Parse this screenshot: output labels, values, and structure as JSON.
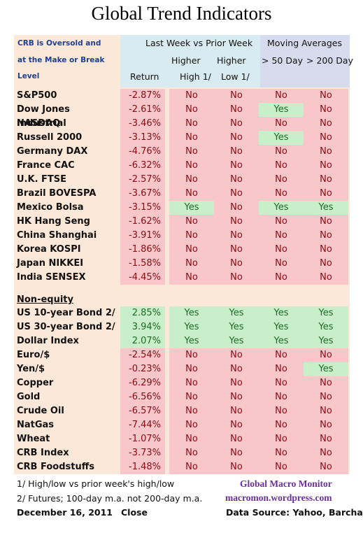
{
  "title": "Global Trend Indicators",
  "header": {
    "crb_note": [
      "CRB is Oversold and",
      "at the Make or Break",
      "Level"
    ],
    "group1": "Last Week vs Prior Week",
    "group2": "Moving Averages",
    "col_return": "Return",
    "col_higher_high": [
      "Higher",
      "High 1/"
    ],
    "col_higher_low": [
      "Higher",
      "Low  1/"
    ],
    "col_50": "> 50 Day",
    "col_200": "> 200 Day"
  },
  "equities": [
    {
      "name": "S&P500",
      "ret": "-2.87%",
      "hh": "No",
      "hl": "No",
      "d50": "No",
      "d200": "No"
    },
    {
      "name": "Dow Jones Industrial",
      "ret": "-2.61%",
      "hh": "No",
      "hl": "No",
      "d50": "Yes",
      "d200": "No"
    },
    {
      "name": "NASDAQ",
      "ret": "-3.46%",
      "hh": "No",
      "hl": "No",
      "d50": "No",
      "d200": "No"
    },
    {
      "name": "Russell 2000",
      "ret": "-3.13%",
      "hh": "No",
      "hl": "No",
      "d50": "Yes",
      "d200": "No"
    },
    {
      "name": "Germany DAX",
      "ret": "-4.76%",
      "hh": "No",
      "hl": "No",
      "d50": "No",
      "d200": "No"
    },
    {
      "name": "France CAC",
      "ret": "-6.32%",
      "hh": "No",
      "hl": "No",
      "d50": "No",
      "d200": "No"
    },
    {
      "name": "U.K. FTSE",
      "ret": "-2.57%",
      "hh": "No",
      "hl": "No",
      "d50": "No",
      "d200": "No"
    },
    {
      "name": "Brazil BOVESPA",
      "ret": "-3.67%",
      "hh": "No",
      "hl": "No",
      "d50": "No",
      "d200": "No"
    },
    {
      "name": "Mexico Bolsa",
      "ret": "-3.15%",
      "hh": "Yes",
      "hl": "No",
      "d50": "Yes",
      "d200": "Yes"
    },
    {
      "name": "HK  Hang Seng",
      "ret": "-1.62%",
      "hh": "No",
      "hl": "No",
      "d50": "No",
      "d200": "No"
    },
    {
      "name": "China Shanghai",
      "ret": "-3.91%",
      "hh": "No",
      "hl": "No",
      "d50": "No",
      "d200": "No"
    },
    {
      "name": "Korea KOSPI",
      "ret": "-1.86%",
      "hh": "No",
      "hl": "No",
      "d50": "No",
      "d200": "No"
    },
    {
      "name": "Japan NIKKEI",
      "ret": "-1.58%",
      "hh": "No",
      "hl": "No",
      "d50": "No",
      "d200": "No"
    },
    {
      "name": "India SENSEX",
      "ret": "-4.45%",
      "hh": "No",
      "hl": "No",
      "d50": "No",
      "d200": "No"
    }
  ],
  "section2_title": "Non-equity",
  "nonequity": [
    {
      "name": "US 10-year Bond 2/",
      "ret": "2.85%",
      "hh": "Yes",
      "hl": "Yes",
      "d50": "Yes",
      "d200": "Yes"
    },
    {
      "name": "US 30-year Bond 2/",
      "ret": "3.94%",
      "hh": "Yes",
      "hl": "Yes",
      "d50": "Yes",
      "d200": "Yes"
    },
    {
      "name": "Dollar Index",
      "ret": "2.07%",
      "hh": "Yes",
      "hl": "Yes",
      "d50": "Yes",
      "d200": "Yes"
    },
    {
      "name": "Euro/$",
      "ret": "-2.54%",
      "hh": "No",
      "hl": "No",
      "d50": "No",
      "d200": "No"
    },
    {
      "name": "Yen/$",
      "ret": "-0.23%",
      "hh": "No",
      "hl": "No",
      "d50": "No",
      "d200": "Yes"
    },
    {
      "name": "Copper",
      "ret": "-6.29%",
      "hh": "No",
      "hl": "No",
      "d50": "No",
      "d200": "No"
    },
    {
      "name": "Gold",
      "ret": "-6.56%",
      "hh": "No",
      "hl": "No",
      "d50": "No",
      "d200": "No"
    },
    {
      "name": "Crude Oil",
      "ret": "-6.57%",
      "hh": "No",
      "hl": "No",
      "d50": "No",
      "d200": "No"
    },
    {
      "name": "NatGas",
      "ret": "-7.44%",
      "hh": "No",
      "hl": "No",
      "d50": "No",
      "d200": "No"
    },
    {
      "name": "Wheat",
      "ret": "-1.07%",
      "hh": "No",
      "hl": "No",
      "d50": "No",
      "d200": "No"
    },
    {
      "name": "CRB Index",
      "ret": "-3.73%",
      "hh": "No",
      "hl": "No",
      "d50": "No",
      "d200": "No"
    },
    {
      "name": "CRB Foodstuffs",
      "ret": "-1.48%",
      "hh": "No",
      "hl": "No",
      "d50": "No",
      "d200": "No"
    }
  ],
  "footer": {
    "note1": "1/  High/low vs prior week's high/low",
    "note2": "2/  Futures;  100-day m.a. not 200-day m.a.",
    "date": "December 16, 2011",
    "close": "Close",
    "brand": "Global Macro Monitor",
    "site": "macromon.wordpress.com",
    "source": "Data Source: Yahoo, Barchart"
  },
  "colors": {
    "negative_bg": "#f9c6c9",
    "negative_text": "#8b0a14",
    "positive_bg": "#c8efc9",
    "positive_text": "#1a6b23",
    "brand": "#6b2fa0"
  }
}
